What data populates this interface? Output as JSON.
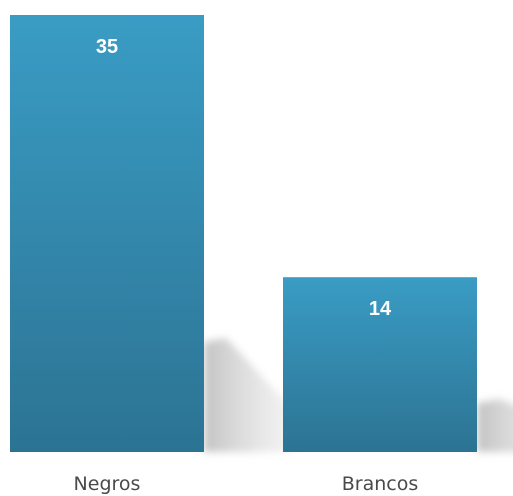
{
  "chart_data": {
    "type": "bar",
    "categories": [
      "Negros",
      "Brancos"
    ],
    "values": [
      35,
      14
    ],
    "title": "",
    "xlabel": "",
    "ylabel": "",
    "ylim": [
      0,
      35
    ],
    "grid": false,
    "legend": "none",
    "data_labels": [
      "35",
      "14"
    ]
  },
  "colors": {
    "bar_top": "#3a9cc4",
    "bar_bottom": "#2c7393",
    "shadow": "#c8c8c8",
    "label_text": "#ffffff",
    "category_text": "#4a4a4a"
  }
}
